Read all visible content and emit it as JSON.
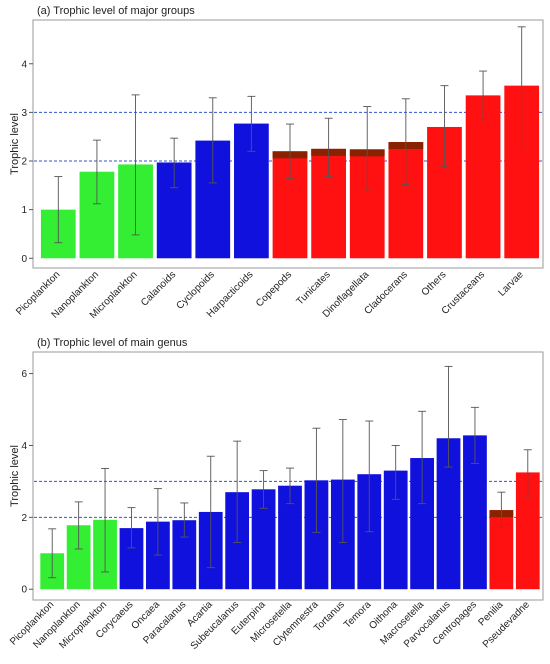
{
  "chart_data": [
    {
      "type": "bar",
      "title": "(a) Trophic level of major groups",
      "xlabel": "",
      "ylabel": "Trophic level",
      "ylim": [
        -0.2,
        4.9
      ],
      "yticks": [
        0,
        1,
        2,
        3,
        4
      ],
      "ref_lines": [
        2,
        3
      ],
      "grid": false,
      "categories": [
        "Picoplankton",
        "Nanoplankton",
        "Microplankton",
        "Calanoids",
        "Cyclopoids",
        "Harpacticoids",
        "Copepods",
        "Tunicates",
        "Dinoflagellata",
        "Cladocerans",
        "Others",
        "Crustaceans",
        "Larvae"
      ],
      "values": [
        1.0,
        1.78,
        1.93,
        1.97,
        2.42,
        2.77,
        2.2,
        2.25,
        2.24,
        2.39,
        2.7,
        3.35,
        3.55
      ],
      "error_low": [
        0.32,
        1.12,
        0.48,
        1.45,
        1.55,
        2.2,
        1.64,
        1.68,
        1.38,
        1.52,
        1.88,
        2.85,
        2.28
      ],
      "error_high": [
        1.68,
        2.43,
        3.36,
        2.47,
        3.3,
        3.33,
        2.76,
        2.88,
        3.12,
        3.28,
        3.55,
        3.85,
        4.76
      ],
      "colors": [
        "#33ee33",
        "#33ee33",
        "#33ee33",
        "#1111dd",
        "#1111dd",
        "#1111dd",
        "#ff1111",
        "#ff1111",
        "#ff1111",
        "#ff1111",
        "#ff1111",
        "#ff1111",
        "#ff1111"
      ]
    },
    {
      "type": "bar",
      "title": "(b) Trophic level of main genus",
      "xlabel": "",
      "ylabel": "Trophic level",
      "ylim": [
        -0.3,
        6.6
      ],
      "yticks": [
        0,
        2,
        4,
        6
      ],
      "ref_lines": [
        2,
        3
      ],
      "grid": false,
      "categories": [
        "Picoplankton",
        "Nanoplankton",
        "Microplankton",
        "Corycaeus",
        "Oncaea",
        "Paracalanus",
        "Acartia",
        "Subeucalanus",
        "Euterpina",
        "Microsetella",
        "Clytemnestra",
        "Tortanus",
        "Temora",
        "Oithona",
        "Macrosetella",
        "Parvocalanus",
        "Centropages",
        "Penilia",
        "Pseudevadne"
      ],
      "values": [
        1.0,
        1.78,
        1.93,
        1.7,
        1.88,
        1.92,
        2.15,
        2.7,
        2.78,
        2.88,
        3.03,
        3.05,
        3.2,
        3.3,
        3.65,
        4.2,
        4.28,
        2.2,
        3.25
      ],
      "error_low": [
        0.32,
        1.12,
        0.48,
        1.15,
        0.95,
        1.45,
        0.6,
        1.3,
        2.25,
        2.38,
        1.58,
        1.3,
        1.6,
        2.5,
        2.38,
        3.4,
        3.5,
        1.72,
        2.6
      ],
      "error_high": [
        1.68,
        2.43,
        3.36,
        2.27,
        2.8,
        2.4,
        3.7,
        4.12,
        3.3,
        3.37,
        4.48,
        4.72,
        4.68,
        4.0,
        4.95,
        6.2,
        5.06,
        2.7,
        3.88
      ],
      "colors": [
        "#33ee33",
        "#33ee33",
        "#33ee33",
        "#1111dd",
        "#1111dd",
        "#1111dd",
        "#1111dd",
        "#1111dd",
        "#1111dd",
        "#1111dd",
        "#1111dd",
        "#1111dd",
        "#1111dd",
        "#1111dd",
        "#1111dd",
        "#1111dd",
        "#1111dd",
        "#ff1111",
        "#ff1111"
      ]
    }
  ],
  "style": {
    "ref_line_color": "#3355cc",
    "error_bar_color": "#555555",
    "frame_color": "#9a9a9a",
    "highlight_color": "#ff66cc",
    "top_band_color": "#882200"
  }
}
